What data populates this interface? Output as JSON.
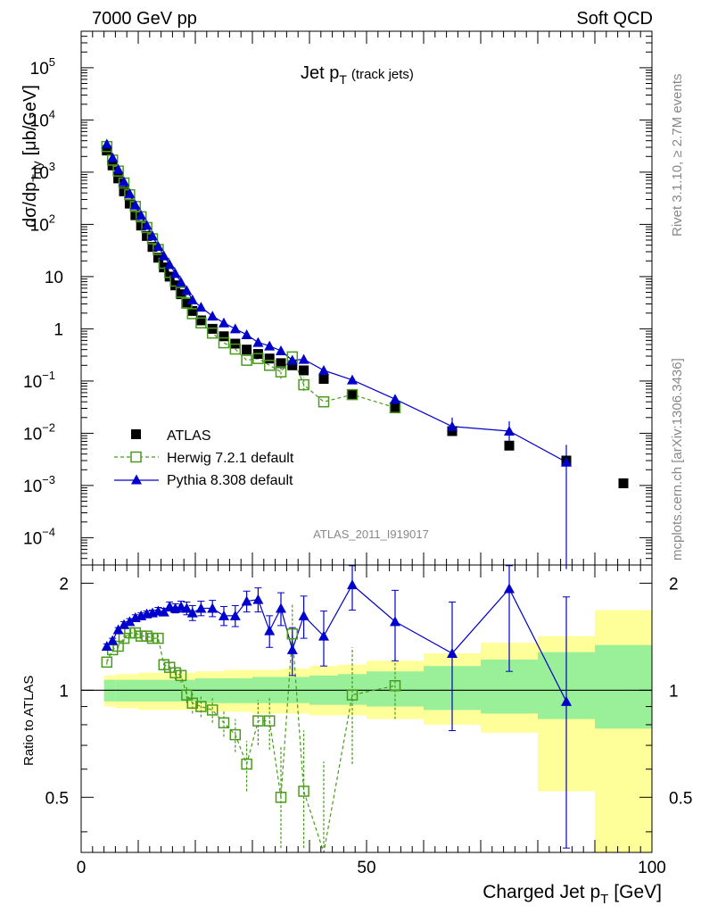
{
  "header": {
    "left": "7000 GeV pp",
    "right": "Soft QCD"
  },
  "side": {
    "rivet": "Rivet 3.1.10, ≥ 2.7M events",
    "mcplots": "mcplots.cern.ch [arXiv:1306.3436]"
  },
  "chart_data": [
    {
      "type": "scatter",
      "title_main": "Jet p",
      "title_sub": "T",
      "title_suffix": "(track jets)",
      "ylabel_main": "dσ/dp",
      "ylabel_sub": "Tdy",
      "ylabel_unit": "[μb/GeV]",
      "watermark": "ATLAS_2011_I919017",
      "yscale": "log",
      "xlim": [
        0,
        100
      ],
      "ylim": [
        3e-05,
        500000.0
      ],
      "ytick_labels": [
        {
          "v": 100000.0,
          "base": "10",
          "exp": "5"
        },
        {
          "v": 10000.0,
          "base": "10",
          "exp": "4"
        },
        {
          "v": 1000.0,
          "base": "10",
          "exp": "3"
        },
        {
          "v": 100,
          "base": "10",
          "exp": "2"
        },
        {
          "v": 10,
          "base": "10",
          "exp": ""
        },
        {
          "v": 1,
          "base": "1",
          "exp": ""
        },
        {
          "v": 0.1,
          "base": "10",
          "exp": "−1"
        },
        {
          "v": 0.01,
          "base": "10",
          "exp": "−2"
        },
        {
          "v": 0.001,
          "base": "10",
          "exp": "−3"
        },
        {
          "v": 0.0001,
          "base": "10",
          "exp": "−4"
        }
      ],
      "legend_position": "lower-left",
      "series": [
        {
          "name": "ATLAS",
          "color": "#000000",
          "marker": "square-filled",
          "x": [
            4.5,
            5.5,
            6.5,
            7.5,
            8.5,
            9.5,
            10.5,
            11.5,
            12.5,
            13.5,
            14.5,
            15.5,
            16.5,
            17.5,
            18.5,
            19.5,
            21,
            23,
            25,
            27,
            29,
            31,
            33,
            35,
            37,
            39,
            42.5,
            47.5,
            55,
            65,
            75,
            85,
            95
          ],
          "y": [
            2600,
            1350,
            760,
            430,
            250,
            150,
            95,
            60,
            37,
            23,
            15,
            10,
            6.8,
            4.6,
            3.2,
            2.2,
            1.45,
            1.0,
            0.72,
            0.52,
            0.4,
            0.33,
            0.27,
            0.22,
            0.2,
            0.16,
            0.11,
            0.055,
            0.03,
            0.011,
            0.0058,
            0.003,
            0.0011
          ]
        },
        {
          "name": "Herwig 7.2.1 default",
          "color": "#4a9a1e",
          "marker": "square-open",
          "x": [
            4.5,
            5.5,
            6.5,
            7.5,
            8.5,
            9.5,
            10.5,
            11.5,
            12.5,
            13.5,
            14.5,
            15.5,
            16.5,
            17.5,
            18.5,
            19.5,
            21,
            23,
            25,
            27,
            29,
            31,
            33,
            35,
            37,
            39,
            42.5,
            47.5,
            55
          ],
          "y": [
            3100,
            1700,
            1050,
            620,
            370,
            220,
            140,
            87,
            53,
            33,
            18,
            12,
            8.2,
            5.0,
            3.1,
            1.95,
            1.3,
            0.83,
            0.54,
            0.41,
            0.25,
            0.27,
            0.2,
            0.15,
            0.29,
            0.085,
            0.04,
            0.055,
            0.031
          ]
        },
        {
          "name": "Pythia 8.308 default",
          "color": "#0000cc",
          "marker": "triangle-filled",
          "x": [
            4.5,
            5.5,
            6.5,
            7.5,
            8.5,
            9.5,
            10.5,
            11.5,
            12.5,
            13.5,
            14.5,
            15.5,
            16.5,
            17.5,
            18.5,
            19.5,
            21,
            23,
            25,
            27,
            29,
            31,
            33,
            35,
            37,
            39,
            42.5,
            47.5,
            55,
            65,
            75,
            85
          ],
          "y": [
            3450,
            1900,
            1130,
            660,
            390,
            235,
            150,
            96,
            60,
            38,
            25,
            17,
            11.5,
            7.8,
            5.4,
            3.6,
            2.6,
            1.75,
            1.3,
            1.0,
            0.77,
            0.55,
            0.47,
            0.38,
            0.25,
            0.26,
            0.16,
            0.105,
            0.045,
            0.0135,
            0.011,
            0.0028
          ]
        }
      ]
    },
    {
      "type": "scatter",
      "ylabel": "Ratio to ATLAS",
      "xlabel_main": "Charged Jet p",
      "xlabel_sub": "T",
      "xlabel_unit": "[GeV]",
      "xlim": [
        0,
        100
      ],
      "ylim": [
        0.35,
        2.25
      ],
      "xticks": [
        0,
        50,
        100
      ],
      "yticks": [
        0.5,
        1,
        2
      ],
      "reference_line": 1,
      "bands": [
        {
          "x0": 4,
          "x1": 6,
          "inner": [
            0.93,
            1.07
          ],
          "outer": [
            0.9,
            1.1
          ]
        },
        {
          "x0": 6,
          "x1": 10,
          "inner": [
            0.93,
            1.07
          ],
          "outer": [
            0.89,
            1.11
          ]
        },
        {
          "x0": 10,
          "x1": 15,
          "inner": [
            0.93,
            1.07
          ],
          "outer": [
            0.88,
            1.12
          ]
        },
        {
          "x0": 15,
          "x1": 20,
          "inner": [
            0.93,
            1.07
          ],
          "outer": [
            0.88,
            1.12
          ]
        },
        {
          "x0": 20,
          "x1": 25,
          "inner": [
            0.92,
            1.08
          ],
          "outer": [
            0.87,
            1.13
          ]
        },
        {
          "x0": 25,
          "x1": 30,
          "inner": [
            0.92,
            1.08
          ],
          "outer": [
            0.87,
            1.14
          ]
        },
        {
          "x0": 30,
          "x1": 35,
          "inner": [
            0.92,
            1.09
          ],
          "outer": [
            0.86,
            1.14
          ]
        },
        {
          "x0": 35,
          "x1": 40,
          "inner": [
            0.92,
            1.09
          ],
          "outer": [
            0.86,
            1.15
          ]
        },
        {
          "x0": 40,
          "x1": 45,
          "inner": [
            0.91,
            1.1
          ],
          "outer": [
            0.85,
            1.17
          ]
        },
        {
          "x0": 45,
          "x1": 50,
          "inner": [
            0.91,
            1.11
          ],
          "outer": [
            0.85,
            1.18
          ]
        },
        {
          "x0": 50,
          "x1": 60,
          "inner": [
            0.9,
            1.13
          ],
          "outer": [
            0.83,
            1.21
          ]
        },
        {
          "x0": 60,
          "x1": 70,
          "inner": [
            0.88,
            1.17
          ],
          "outer": [
            0.8,
            1.27
          ]
        },
        {
          "x0": 70,
          "x1": 80,
          "inner": [
            0.86,
            1.22
          ],
          "outer": [
            0.76,
            1.36
          ]
        },
        {
          "x0": 80,
          "x1": 90,
          "inner": [
            0.83,
            1.28
          ],
          "outer": [
            0.52,
            1.42
          ]
        },
        {
          "x0": 90,
          "x1": 100,
          "inner": [
            0.78,
            1.34
          ],
          "outer": [
            0.35,
            1.68
          ]
        }
      ],
      "series": [
        {
          "name": "Herwig 7.2.1 default",
          "color": "#4a9a1e",
          "marker": "square-open",
          "x": [
            4.5,
            5.5,
            6.5,
            7.5,
            8.5,
            9.5,
            10.5,
            11.5,
            12.5,
            13.5,
            14.5,
            15.5,
            16.5,
            17.5,
            18.5,
            19.5,
            21,
            23,
            25,
            27,
            29,
            31,
            33,
            35,
            37,
            39,
            42.5,
            47.5,
            55
          ],
          "y": [
            1.2,
            1.3,
            1.33,
            1.4,
            1.45,
            1.45,
            1.42,
            1.42,
            1.4,
            1.4,
            1.18,
            1.16,
            1.12,
            1.1,
            0.97,
            0.92,
            0.9,
            0.88,
            0.81,
            0.75,
            0.62,
            0.82,
            0.82,
            0.5,
            1.44,
            0.52,
            0.33,
            0.97,
            1.03
          ],
          "err": [
            0.02,
            0.02,
            0.02,
            0.03,
            0.03,
            0.03,
            0.03,
            0.03,
            0.03,
            0.03,
            0.04,
            0.04,
            0.05,
            0.05,
            0.05,
            0.06,
            0.06,
            0.07,
            0.07,
            0.08,
            0.1,
            0.12,
            0.14,
            0.2,
            0.3,
            0.25,
            0.3,
            0.35,
            0.2
          ]
        },
        {
          "name": "Pythia 8.308 default",
          "color": "#0000cc",
          "marker": "triangle-filled",
          "x": [
            4.5,
            5.5,
            6.5,
            7.5,
            8.5,
            9.5,
            10.5,
            11.5,
            12.5,
            13.5,
            14.5,
            15.5,
            16.5,
            17.5,
            18.5,
            19.5,
            21,
            23,
            25,
            27,
            29,
            31,
            33,
            35,
            37,
            39,
            42.5,
            47.5,
            55,
            65,
            75,
            85
          ],
          "y": [
            1.33,
            1.38,
            1.48,
            1.53,
            1.56,
            1.6,
            1.62,
            1.64,
            1.65,
            1.67,
            1.66,
            1.72,
            1.7,
            1.72,
            1.7,
            1.65,
            1.7,
            1.7,
            1.62,
            1.62,
            1.78,
            1.8,
            1.47,
            1.7,
            1.3,
            1.62,
            1.42,
            1.98,
            1.56,
            1.27,
            1.93,
            0.93
          ],
          "err": [
            0.02,
            0.02,
            0.02,
            0.03,
            0.03,
            0.03,
            0.03,
            0.03,
            0.03,
            0.04,
            0.04,
            0.05,
            0.05,
            0.06,
            0.07,
            0.08,
            0.08,
            0.09,
            0.1,
            0.11,
            0.12,
            0.14,
            0.15,
            0.18,
            0.2,
            0.22,
            0.25,
            0.3,
            0.35,
            0.5,
            0.8,
            0.9
          ]
        }
      ]
    }
  ]
}
